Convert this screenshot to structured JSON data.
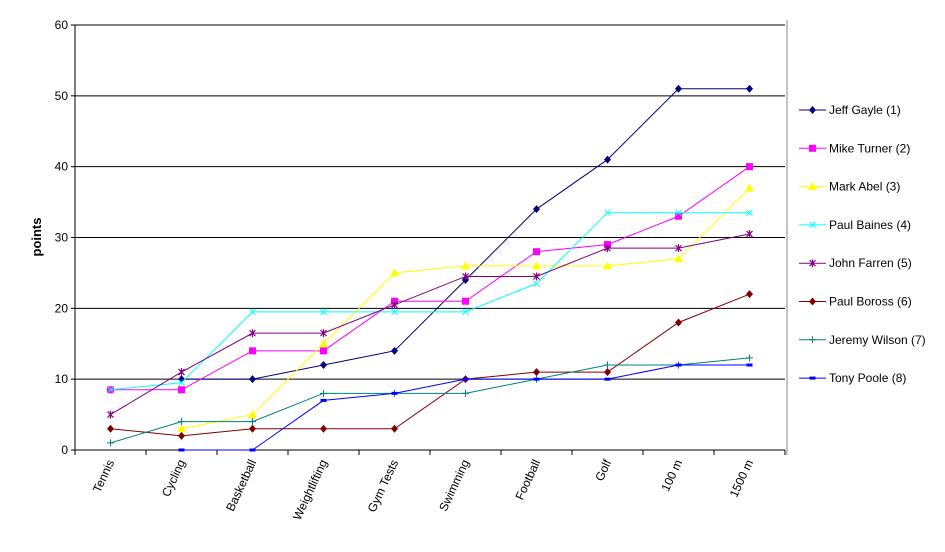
{
  "chart_data": {
    "type": "line",
    "title": "",
    "xlabel": "",
    "ylabel": "points",
    "ylim": [
      0,
      60
    ],
    "yticks": [
      "0",
      "10",
      "20",
      "30",
      "40",
      "50",
      "60"
    ],
    "grid": true,
    "legend_position": "right",
    "categories": [
      "Tennis",
      "Cycling",
      "Basketball",
      "Weightlifting",
      "Gym Tests",
      "Swimming",
      "Football",
      "Golf",
      "100 m",
      "1500 m"
    ],
    "series": [
      {
        "name": "Jeff Gayle (1)",
        "color": "#000080",
        "marker": "diamond",
        "values": [
          null,
          10,
          10,
          12,
          14,
          24,
          34,
          41,
          51,
          51
        ]
      },
      {
        "name": "Mike Turner (2)",
        "color": "#FF00FF",
        "marker": "square",
        "values": [
          8.5,
          8.5,
          14,
          14,
          21,
          21,
          28,
          29,
          33,
          40
        ]
      },
      {
        "name": "Mark Abel (3)",
        "color": "#FFFF00",
        "marker": "triangle",
        "values": [
          null,
          3,
          5,
          15,
          25,
          26,
          26,
          26,
          27,
          37
        ]
      },
      {
        "name": "Paul Baines (4)",
        "color": "#00FFFF",
        "marker": "x",
        "values": [
          8.5,
          9.5,
          19.5,
          19.5,
          19.5,
          19.5,
          23.5,
          33.5,
          33.5,
          33.5
        ]
      },
      {
        "name": "John Farren (5)",
        "color": "#800080",
        "marker": "star",
        "values": [
          5,
          11,
          16.5,
          16.5,
          20.5,
          24.5,
          24.5,
          28.5,
          28.5,
          30.5
        ]
      },
      {
        "name": "Paul Boross (6)",
        "color": "#800000",
        "marker": "diamond",
        "values": [
          3,
          2,
          3,
          3,
          3,
          10,
          11,
          11,
          18,
          22
        ]
      },
      {
        "name": "Jeremy Wilson (7)",
        "color": "#008080",
        "marker": "plus",
        "values": [
          1,
          4,
          4,
          8,
          8,
          8,
          10,
          12,
          12,
          13
        ]
      },
      {
        "name": "Tony Poole (8)",
        "color": "#0000FF",
        "marker": "dash",
        "values": [
          null,
          0,
          0,
          7,
          8,
          10,
          10,
          10,
          12,
          12
        ]
      }
    ]
  }
}
